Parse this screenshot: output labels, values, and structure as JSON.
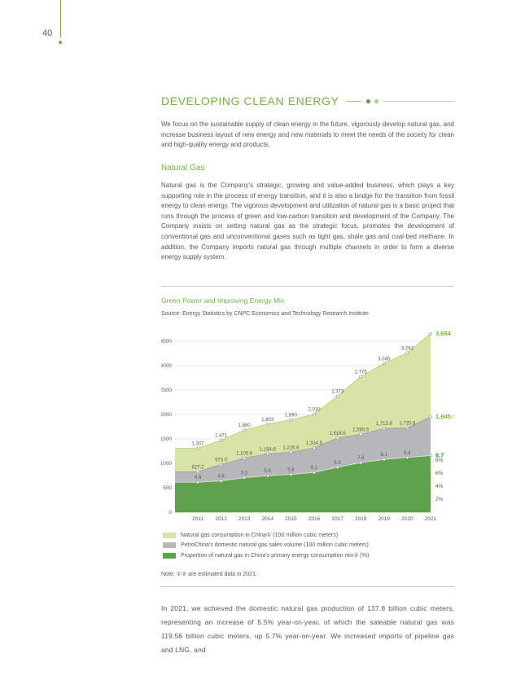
{
  "page": {
    "number": "40"
  },
  "section": {
    "title": "DEVELOPING CLEAN ENERGY",
    "intro": "We focus on the sustainable supply of clean energy in the future, vigorously develop natural gas, and increase business layout of new energy and new materials to meet the needs of the society for clean and high-quality energy and products."
  },
  "natural_gas": {
    "heading": "Natural Gas",
    "body": "Natural gas is the Company’s strategic, growing and value-added business, which plays a key supporting role in the process of energy transition, and it is also a bridge for the transition from fossil energy to clean energy. The vigorous development and utilization of natural gas is a basic project that runs through the process of green and low-carbon transition and development of the Company. The Company insists on setting natural gas as the strategic focus, promotes the development of conventional gas and unconventional gases such as tight gas, shale gas and coal-bed methane. In addition, the Company imports natural gas through multiple channels in order to form a diverse energy supply system."
  },
  "figure": {
    "title": "Green Power and Improving Energy Mix",
    "source": "Source: Energy Statistics by CNPC Economics and Technology Research Institute",
    "note": "Note: ①② are estimated data in 2021.",
    "legend": [
      {
        "label": "Natural gas consumption in China① (100 million cubic meters)"
      },
      {
        "label": "PetroChina's domestic natural gas sales volume (100 million cubic meters)"
      },
      {
        "label": "Proportion of natural gas in China's primary energy consumption mix② (%)"
      }
    ]
  },
  "chart_data": {
    "type": "area",
    "title": "Green Power and Improving Energy Mix",
    "categories": [
      "2011",
      "2012",
      "2013",
      "2014",
      "2015",
      "2016",
      "2017",
      "2018",
      "2019",
      "2020",
      "2021"
    ],
    "series": [
      {
        "name": "Natural gas consumption in China (100 million cubic meters)",
        "axis": "left",
        "fill": "#d6e5a5",
        "line": "#b9d17e",
        "end_label_color": "#76b043",
        "values": [
          1307,
          1471,
          1680,
          1803,
          1890,
          2010,
          2373,
          2775,
          3045,
          3262,
          3654
        ],
        "labels": [
          "1,307",
          "1,471",
          "1,680",
          "1,803",
          "1,890",
          "2,010",
          "2,373",
          "2,775",
          "3,045",
          "3,262",
          "3,654"
        ]
      },
      {
        "name": "PetroChina's domestic natural gas sales volume (100 million cubic meters)",
        "axis": "left",
        "fill": "#b7b7bb",
        "line": "#9f9fa4",
        "end_label_color": "#76b043",
        "values": [
          827.2,
          973.0,
          1105.6,
          1194.8,
          1226.6,
          1314.5,
          1518.6,
          1595.5,
          1713.8,
          1725.9,
          1945.9
        ],
        "labels": [
          "827.2",
          "973.0",
          "1,105.6",
          "1,194.8",
          "1,226.6",
          "1,314.5",
          "1,518.6",
          "1,595.5",
          "1,713.8",
          "1,725.9",
          "1,945.9"
        ]
      },
      {
        "name": "Proportion of natural gas in China's primary energy consumption mix (%)",
        "axis": "right",
        "fill": "#5fa24d",
        "line": "#dfe7d8",
        "end_label_color": "#3f8a36",
        "values": [
          4.6,
          4.8,
          5.3,
          5.6,
          5.8,
          6.1,
          6.9,
          7.6,
          8.1,
          8.4,
          8.7
        ],
        "labels": [
          "4.6",
          "4.8",
          "5.3",
          "5.6",
          "5.8",
          "6.1",
          "6.9",
          "7.6",
          "8.1",
          "8.4",
          "8.7"
        ]
      }
    ],
    "left_axis": {
      "min": 0,
      "max": 3500,
      "step": 500,
      "ticks": [
        "0",
        "500",
        "1000",
        "1500",
        "2000",
        "2500",
        "3000",
        "3500"
      ]
    },
    "right_axis": {
      "min": 0,
      "max": 8,
      "ticks": [
        "2%",
        "4%",
        "6%",
        "8%"
      ],
      "tick_values": [
        2,
        4,
        6,
        8
      ]
    },
    "grid": true,
    "legend_position": "bottom"
  },
  "closing": {
    "body": "In 2021, we achieved the domestic natural gas production of 137.8 billion cubic meters, representing an increase of 5.5% year-on-year, of which the saleable natural gas was 119.56 billion cubic meters, up 5.7% year-on-year. We increased imports of pipeline gas and LNG, and"
  }
}
